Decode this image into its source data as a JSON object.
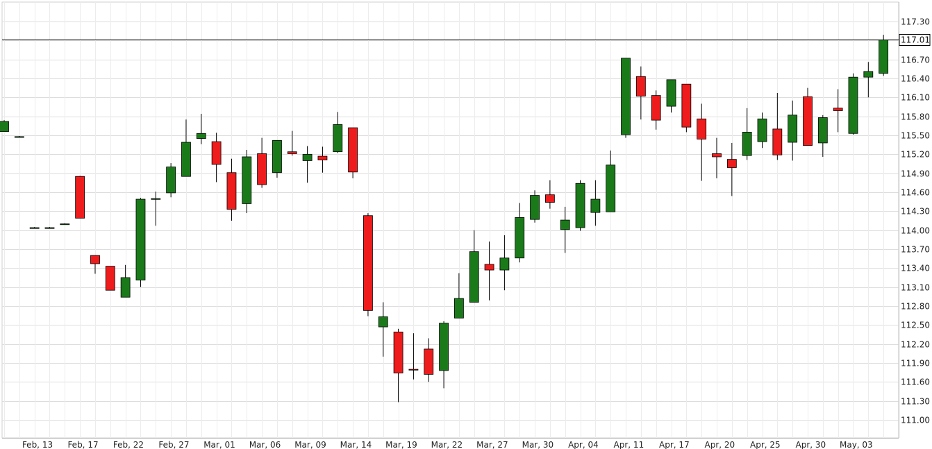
{
  "chart_data": {
    "type": "candlestick",
    "title": "",
    "xlabel": "",
    "ylabel": "",
    "ylim": [
      110.7,
      117.45
    ],
    "y_ticks": [
      111.0,
      111.3,
      111.6,
      111.9,
      112.2,
      112.5,
      112.8,
      113.1,
      113.4,
      113.7,
      114.0,
      114.3,
      114.6,
      114.9,
      115.2,
      115.5,
      115.8,
      116.1,
      116.4,
      116.7,
      117.0,
      117.3
    ],
    "y_tick_labels": [
      "111.00",
      "111.30",
      "111.60",
      "111.90",
      "112.20",
      "112.50",
      "112.80",
      "113.10",
      "113.40",
      "113.70",
      "114.00",
      "114.30",
      "114.60",
      "114.90",
      "115.20",
      "115.50",
      "115.80",
      "116.10",
      "116.40",
      "116.70",
      "117.00",
      "117.30"
    ],
    "x_ticks": [
      {
        "label": "Feb, 13",
        "index": 2.2
      },
      {
        "label": "Feb, 17",
        "index": 5.2
      },
      {
        "label": "Feb, 22",
        "index": 8.2
      },
      {
        "label": "Feb, 27",
        "index": 11.2
      },
      {
        "label": "Mar, 01",
        "index": 14.2
      },
      {
        "label": "Mar, 06",
        "index": 17.2
      },
      {
        "label": "Mar, 09",
        "index": 20.2
      },
      {
        "label": "Mar, 14",
        "index": 23.2
      },
      {
        "label": "Mar, 19",
        "index": 26.2
      },
      {
        "label": "Mar, 22",
        "index": 29.2
      },
      {
        "label": "Mar, 27",
        "index": 32.2
      },
      {
        "label": "Mar, 30",
        "index": 35.2
      },
      {
        "label": "Apr, 04",
        "index": 38.2
      },
      {
        "label": "Apr, 11",
        "index": 41.2
      },
      {
        "label": "Apr, 17",
        "index": 44.2
      },
      {
        "label": "Apr, 20",
        "index": 47.2
      },
      {
        "label": "Apr, 25",
        "index": 50.2
      },
      {
        "label": "Apr, 30",
        "index": 53.2
      },
      {
        "label": "May, 03",
        "index": 56.2
      }
    ],
    "last_price": 117.01,
    "last_price_label": "117.01",
    "grid": true,
    "colors": {
      "up": "#1a7a1a",
      "down": "#ee1c1c",
      "grid": "#dddddd",
      "axis": "#000000"
    },
    "candles": [
      {
        "o": 115.56,
        "h": 115.74,
        "l": 115.56,
        "c": 115.72
      },
      {
        "o": 115.48,
        "h": 115.49,
        "l": 115.47,
        "c": 115.48
      },
      {
        "o": 114.04,
        "h": 114.05,
        "l": 114.03,
        "c": 114.04
      },
      {
        "o": 114.04,
        "h": 114.05,
        "l": 114.03,
        "c": 114.04
      },
      {
        "o": 114.1,
        "h": 114.11,
        "l": 114.09,
        "c": 114.1
      },
      {
        "o": 114.85,
        "h": 114.86,
        "l": 114.19,
        "c": 114.19
      },
      {
        "o": 113.6,
        "h": 113.6,
        "l": 113.31,
        "c": 113.47
      },
      {
        "o": 113.43,
        "h": 113.43,
        "l": 113.05,
        "c": 113.05
      },
      {
        "o": 112.94,
        "h": 113.45,
        "l": 112.94,
        "c": 113.25
      },
      {
        "o": 113.21,
        "h": 114.51,
        "l": 113.1,
        "c": 114.49
      },
      {
        "o": 114.5,
        "h": 114.61,
        "l": 114.07,
        "c": 114.5
      },
      {
        "o": 114.59,
        "h": 115.06,
        "l": 114.52,
        "c": 115.0
      },
      {
        "o": 114.85,
        "h": 115.75,
        "l": 114.85,
        "c": 115.39
      },
      {
        "o": 115.45,
        "h": 115.84,
        "l": 115.36,
        "c": 115.53
      },
      {
        "o": 115.4,
        "h": 115.54,
        "l": 114.76,
        "c": 115.04
      },
      {
        "o": 114.91,
        "h": 115.13,
        "l": 114.15,
        "c": 114.33
      },
      {
        "o": 114.42,
        "h": 115.27,
        "l": 114.27,
        "c": 115.16
      },
      {
        "o": 115.21,
        "h": 115.46,
        "l": 114.67,
        "c": 114.72
      },
      {
        "o": 114.91,
        "h": 115.42,
        "l": 114.83,
        "c": 115.42
      },
      {
        "o": 115.24,
        "h": 115.57,
        "l": 115.18,
        "c": 115.21
      },
      {
        "o": 115.1,
        "h": 115.33,
        "l": 114.75,
        "c": 115.2
      },
      {
        "o": 115.17,
        "h": 115.32,
        "l": 114.91,
        "c": 115.11
      },
      {
        "o": 115.24,
        "h": 115.87,
        "l": 115.22,
        "c": 115.67
      },
      {
        "o": 115.62,
        "h": 115.62,
        "l": 114.82,
        "c": 114.92
      },
      {
        "o": 114.23,
        "h": 114.27,
        "l": 112.64,
        "c": 112.73
      },
      {
        "o": 112.47,
        "h": 112.86,
        "l": 112.0,
        "c": 112.63
      },
      {
        "o": 112.39,
        "h": 112.44,
        "l": 111.28,
        "c": 111.74
      },
      {
        "o": 111.8,
        "h": 112.37,
        "l": 111.64,
        "c": 111.79
      },
      {
        "o": 112.12,
        "h": 112.29,
        "l": 111.6,
        "c": 111.72
      },
      {
        "o": 111.78,
        "h": 112.56,
        "l": 111.5,
        "c": 112.53
      },
      {
        "o": 112.61,
        "h": 113.32,
        "l": 112.61,
        "c": 112.92
      },
      {
        "o": 112.86,
        "h": 114.0,
        "l": 112.86,
        "c": 113.66
      },
      {
        "o": 113.46,
        "h": 113.82,
        "l": 112.89,
        "c": 113.37
      },
      {
        "o": 113.37,
        "h": 113.92,
        "l": 113.05,
        "c": 113.56
      },
      {
        "o": 113.56,
        "h": 114.43,
        "l": 113.49,
        "c": 114.2
      },
      {
        "o": 114.17,
        "h": 114.63,
        "l": 114.12,
        "c": 114.55
      },
      {
        "o": 114.56,
        "h": 114.79,
        "l": 114.34,
        "c": 114.44
      },
      {
        "o": 114.01,
        "h": 114.37,
        "l": 113.64,
        "c": 114.16
      },
      {
        "o": 114.04,
        "h": 114.79,
        "l": 113.99,
        "c": 114.74
      },
      {
        "o": 114.28,
        "h": 114.79,
        "l": 114.07,
        "c": 114.49
      },
      {
        "o": 114.29,
        "h": 115.26,
        "l": 114.29,
        "c": 115.03
      },
      {
        "o": 115.51,
        "h": 116.72,
        "l": 115.46,
        "c": 116.72
      },
      {
        "o": 116.43,
        "h": 116.59,
        "l": 115.75,
        "c": 116.12
      },
      {
        "o": 116.13,
        "h": 116.21,
        "l": 115.59,
        "c": 115.74
      },
      {
        "o": 115.96,
        "h": 116.38,
        "l": 115.86,
        "c": 116.38
      },
      {
        "o": 116.31,
        "h": 116.31,
        "l": 115.55,
        "c": 115.63
      },
      {
        "o": 115.76,
        "h": 116.0,
        "l": 114.78,
        "c": 115.44
      },
      {
        "o": 115.21,
        "h": 115.46,
        "l": 114.82,
        "c": 115.16
      },
      {
        "o": 115.12,
        "h": 115.38,
        "l": 114.54,
        "c": 114.99
      },
      {
        "o": 115.18,
        "h": 115.93,
        "l": 115.11,
        "c": 115.55
      },
      {
        "o": 115.4,
        "h": 115.86,
        "l": 115.3,
        "c": 115.76
      },
      {
        "o": 115.6,
        "h": 116.17,
        "l": 115.11,
        "c": 115.19
      },
      {
        "o": 115.39,
        "h": 116.05,
        "l": 115.1,
        "c": 115.82
      },
      {
        "o": 116.11,
        "h": 116.25,
        "l": 115.34,
        "c": 115.34
      },
      {
        "o": 115.38,
        "h": 115.82,
        "l": 115.16,
        "c": 115.78
      },
      {
        "o": 115.93,
        "h": 116.23,
        "l": 115.55,
        "c": 115.89
      },
      {
        "o": 115.53,
        "h": 116.48,
        "l": 115.51,
        "c": 116.42
      },
      {
        "o": 116.42,
        "h": 116.66,
        "l": 116.1,
        "c": 116.51
      },
      {
        "o": 116.48,
        "h": 117.09,
        "l": 116.44,
        "c": 117.01
      }
    ]
  }
}
